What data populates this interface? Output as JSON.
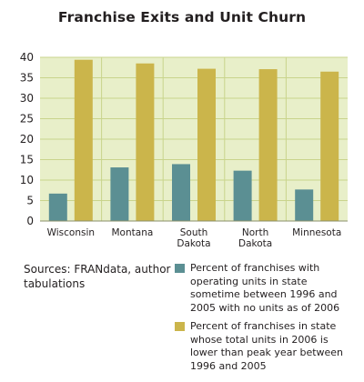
{
  "chart_data": {
    "type": "bar",
    "title": "Franchise Exits and Unit Churn",
    "categories": [
      [
        "Wisconsin"
      ],
      [
        "Montana"
      ],
      [
        "South",
        "Dakota"
      ],
      [
        "North",
        "Dakota"
      ],
      [
        "Minnesota"
      ]
    ],
    "series": [
      {
        "name": "Percent of franchises with operating units in state sometime between 1996 and 2005 with no units as of 2006",
        "color": "#5b8f93",
        "values": [
          6.7,
          13.1,
          13.9,
          12.3,
          7.7
        ]
      },
      {
        "name": "Percent of franchises in state whose total units in 2006 is lower than peak year between 1996 and 2005",
        "color": "#cbb54b",
        "values": [
          39.4,
          38.5,
          37.2,
          37.1,
          36.5
        ]
      }
    ],
    "ylim": [
      0,
      40
    ],
    "yticks": [
      "0",
      "5",
      "10",
      "15",
      "20",
      "25",
      "30",
      "35",
      "40"
    ],
    "grid": true,
    "background_color": "#e8efc9",
    "grid_color": "#c9d48c",
    "source": "Sources: FRANdata, author tabulations"
  }
}
